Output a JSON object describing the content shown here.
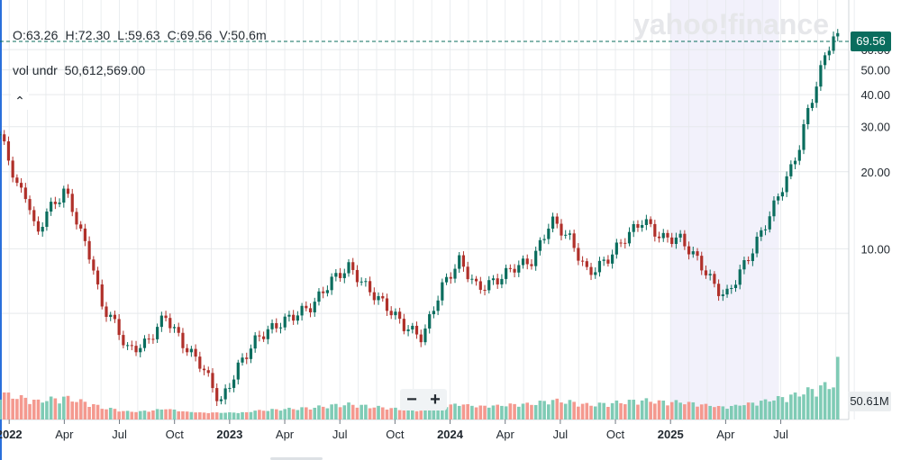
{
  "ohlc": {
    "open": "O:63.26",
    "high": "H:72.30",
    "low": "L:59.63",
    "close": "C:69.56",
    "volume": "V:50.6m"
  },
  "volume_label": "vol undr",
  "volume_value": "50,612,569.00",
  "collapse_icon": "chevron-up-icon",
  "collapse_glyph": "⌃",
  "watermark": "yahoo!finance",
  "zoom": {
    "minus": "−",
    "plus": "+"
  },
  "last_price_label": "69.56",
  "last_volume_label": "50.61M",
  "colors": {
    "up": "#0a6d5e",
    "down": "#b0302a",
    "vol_up": "#7fcbb5",
    "vol_down": "#f4998f",
    "grid": "#e6e9ec",
    "shade": "#f2f1fb"
  },
  "chart_data": {
    "type": "candlestick",
    "y_axis": {
      "ticks": [
        10,
        20,
        30,
        40,
        50,
        60
      ],
      "labels": [
        "10.00",
        "20.00",
        "30.00",
        "40.00",
        "50.00",
        "60.00"
      ],
      "ylim": [
        2.3,
        73.5
      ],
      "position": "right"
    },
    "x_axis": {
      "ticks": [
        {
          "label": "2022",
          "bold": true,
          "t": 0.5
        },
        {
          "label": "Apr",
          "t": 3.5
        },
        {
          "label": "Jul",
          "t": 6.5
        },
        {
          "label": "Oct",
          "t": 9.5
        },
        {
          "label": "2023",
          "bold": true,
          "t": 12.5
        },
        {
          "label": "Apr",
          "t": 15.5
        },
        {
          "label": "Jul",
          "t": 18.5
        },
        {
          "label": "Oct",
          "t": 21.5
        },
        {
          "label": "2024",
          "bold": true,
          "t": 24.5
        },
        {
          "label": "Apr",
          "t": 27.5
        },
        {
          "label": "Jul",
          "t": 30.5
        },
        {
          "label": "Oct",
          "t": 33.5
        },
        {
          "label": "2025",
          "bold": true,
          "t": 36.5
        },
        {
          "label": "Apr",
          "t": 39.5
        },
        {
          "label": "Jul",
          "t": 42.5
        }
      ]
    },
    "shaded_ranges": [
      [
        36.5,
        42.4
      ]
    ],
    "last_close": 69.56,
    "last_volume": 50.61,
    "volume_axis_max": 80,
    "key_closes": [
      [
        0,
        28
      ],
      [
        0.5,
        22
      ],
      [
        1,
        17
      ],
      [
        1.5,
        16
      ],
      [
        2,
        11
      ],
      [
        2.5,
        14
      ],
      [
        3,
        15
      ],
      [
        3.5,
        17
      ],
      [
        4,
        14
      ],
      [
        4.5,
        11
      ],
      [
        5,
        9
      ],
      [
        5.5,
        6
      ],
      [
        6,
        5.5
      ],
      [
        7,
        4
      ],
      [
        8,
        4.3
      ],
      [
        9,
        5.5
      ],
      [
        10,
        4.2
      ],
      [
        11,
        3.5
      ],
      [
        12,
        2.5
      ],
      [
        13,
        3.5
      ],
      [
        14,
        4.5
      ],
      [
        15,
        5
      ],
      [
        16,
        5.5
      ],
      [
        17,
        6
      ],
      [
        18,
        7.5
      ],
      [
        19,
        8.5
      ],
      [
        20,
        7
      ],
      [
        21,
        6
      ],
      [
        22,
        5
      ],
      [
        23,
        4.5
      ],
      [
        24,
        7
      ],
      [
        25,
        9
      ],
      [
        26,
        7
      ],
      [
        27,
        7.5
      ],
      [
        28,
        8.5
      ],
      [
        29,
        9
      ],
      [
        30,
        13
      ],
      [
        31,
        11
      ],
      [
        32,
        8
      ],
      [
        33,
        9
      ],
      [
        34,
        11
      ],
      [
        35,
        13
      ],
      [
        36,
        11
      ],
      [
        37,
        11
      ],
      [
        38,
        9
      ],
      [
        39,
        7
      ],
      [
        39.5,
        6.5
      ],
      [
        40,
        7.5
      ],
      [
        41,
        10
      ],
      [
        42,
        14
      ],
      [
        42.5,
        17
      ],
      [
        43,
        20
      ],
      [
        43.5,
        25
      ],
      [
        44,
        35
      ],
      [
        44.5,
        45
      ],
      [
        45,
        60
      ],
      [
        45.5,
        69.56
      ]
    ]
  }
}
